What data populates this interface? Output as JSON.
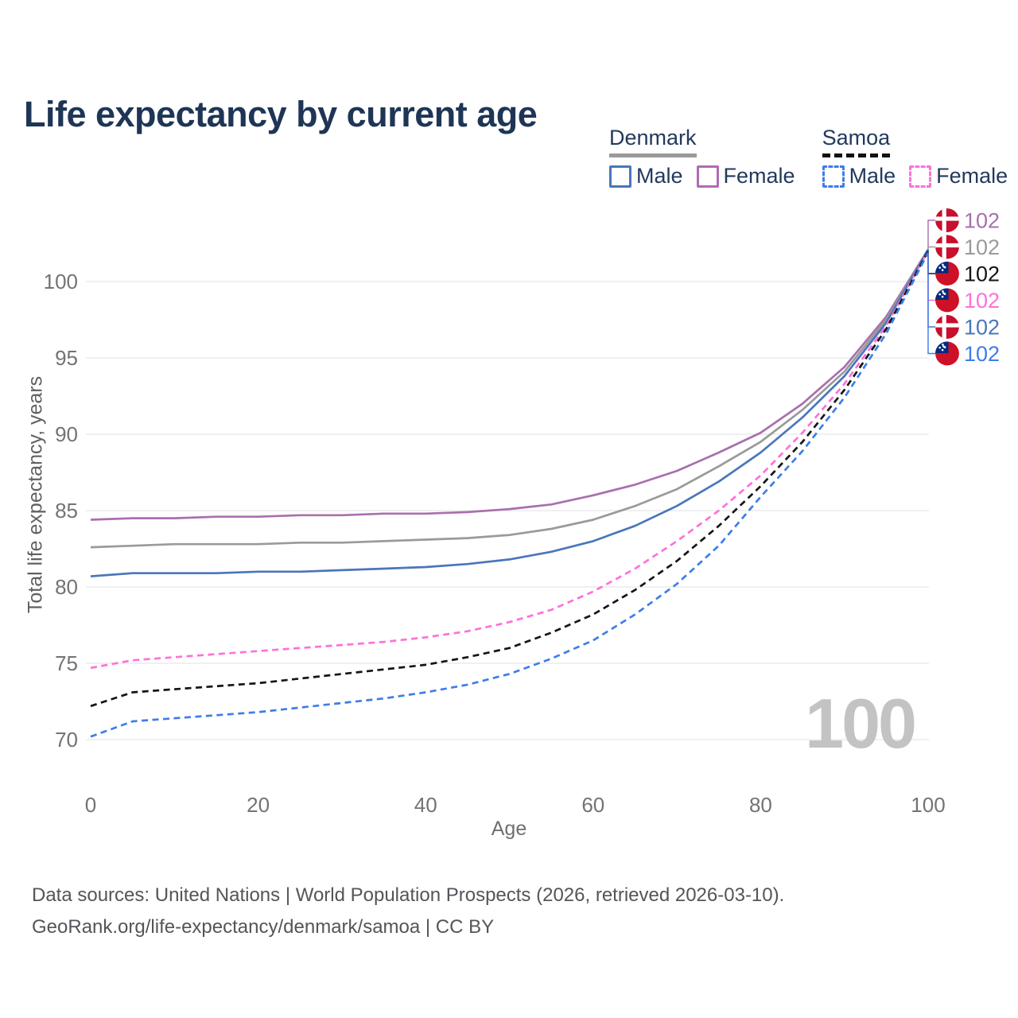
{
  "title": "Life expectancy by current age",
  "watermark_age": "100",
  "axes": {
    "x_label": "Age",
    "y_label": "Total life expectancy, years"
  },
  "footer": {
    "line1": "Data sources: United Nations | World Population Prospects (2026, retrieved 2026-03-10).",
    "line2": "GeoRank.org/life-expectancy/denmark/samoa | CC BY"
  },
  "legend": {
    "groups": [
      {
        "label": "Denmark",
        "line_style": "solid",
        "swatch_color": "#9a9a9a",
        "items": [
          {
            "label": "Male",
            "color": "#4a76bb",
            "dashed": false
          },
          {
            "label": "Female",
            "color": "#b06cb0",
            "dashed": false
          }
        ]
      },
      {
        "label": "Samoa",
        "line_style": "dashed",
        "swatch_color": "#111111",
        "items": [
          {
            "label": "Male",
            "color": "#3d7de9",
            "dashed": true
          },
          {
            "label": "Female",
            "color": "#ff70d9",
            "dashed": true
          }
        ]
      }
    ]
  },
  "chart_data": {
    "type": "line",
    "title": "Life expectancy by current age",
    "xlabel": "Age",
    "ylabel": "Total life expectancy, years",
    "xlim": [
      0,
      100
    ],
    "ylim": [
      69,
      103
    ],
    "x_ticks": [
      0,
      20,
      40,
      60,
      80,
      100
    ],
    "y_ticks": [
      70,
      75,
      80,
      85,
      90,
      95,
      100
    ],
    "grid": "horizontal",
    "legend_position": "top-right",
    "x": [
      0,
      5,
      10,
      15,
      20,
      25,
      30,
      35,
      40,
      45,
      50,
      55,
      60,
      65,
      70,
      75,
      80,
      85,
      90,
      95,
      100
    ],
    "series": [
      {
        "name": "Denmark Female",
        "country": "Denmark",
        "sex": "Female",
        "color": "#a96fae",
        "dashed": false,
        "flag": "samoa-none-denmark",
        "flag_type": "denmark",
        "end_label": "102",
        "end_row": 0,
        "values": [
          84.4,
          84.5,
          84.5,
          84.6,
          84.6,
          84.7,
          84.7,
          84.8,
          84.8,
          84.9,
          85.1,
          85.4,
          86.0,
          86.7,
          87.6,
          88.8,
          90.1,
          92.0,
          94.4,
          97.7,
          102.1
        ]
      },
      {
        "name": "Denmark",
        "country": "Denmark",
        "sex": "Both",
        "color": "#9a9a9a",
        "dashed": false,
        "flag_type": "denmark",
        "end_label": "102",
        "end_row": 1,
        "values": [
          82.6,
          82.7,
          82.8,
          82.8,
          82.8,
          82.9,
          82.9,
          83.0,
          83.1,
          83.2,
          83.4,
          83.8,
          84.4,
          85.3,
          86.4,
          87.9,
          89.5,
          91.6,
          94.1,
          97.5,
          102.1
        ]
      },
      {
        "name": "Denmark Male",
        "country": "Denmark",
        "sex": "Male",
        "color": "#4a76bb",
        "dashed": false,
        "flag_type": "denmark",
        "end_label": "102",
        "end_row": 4,
        "values": [
          80.7,
          80.9,
          80.9,
          80.9,
          81.0,
          81.0,
          81.1,
          81.2,
          81.3,
          81.5,
          81.8,
          82.3,
          83.0,
          84.0,
          85.3,
          86.9,
          88.8,
          91.1,
          93.8,
          97.3,
          102.1
        ]
      },
      {
        "name": "Samoa Female",
        "country": "Samoa",
        "sex": "Female",
        "color": "#ff70d9",
        "dashed": true,
        "flag_type": "samoa",
        "end_label": "102",
        "end_row": 3,
        "values": [
          74.7,
          75.2,
          75.4,
          75.6,
          75.8,
          76.0,
          76.2,
          76.4,
          76.7,
          77.1,
          77.7,
          78.5,
          79.7,
          81.2,
          83.0,
          85.0,
          87.3,
          90.1,
          93.3,
          97.1,
          102.0
        ]
      },
      {
        "name": "Samoa",
        "country": "Samoa",
        "sex": "Both",
        "color": "#151515",
        "dashed": true,
        "flag_type": "samoa",
        "end_label": "102",
        "end_row": 2,
        "values": [
          72.2,
          73.1,
          73.3,
          73.5,
          73.7,
          74.0,
          74.3,
          74.6,
          74.9,
          75.4,
          76.0,
          77.0,
          78.2,
          79.8,
          81.7,
          84.0,
          86.6,
          89.5,
          92.9,
          96.9,
          102.0
        ]
      },
      {
        "name": "Samoa Male",
        "country": "Samoa",
        "sex": "Male",
        "color": "#3d7de9",
        "dashed": true,
        "flag_type": "samoa",
        "end_label": "102",
        "end_row": 5,
        "values": [
          70.2,
          71.2,
          71.4,
          71.6,
          71.8,
          72.1,
          72.4,
          72.7,
          73.1,
          73.6,
          74.3,
          75.3,
          76.5,
          78.2,
          80.2,
          82.7,
          85.9,
          88.9,
          92.4,
          96.6,
          101.9
        ]
      }
    ]
  }
}
